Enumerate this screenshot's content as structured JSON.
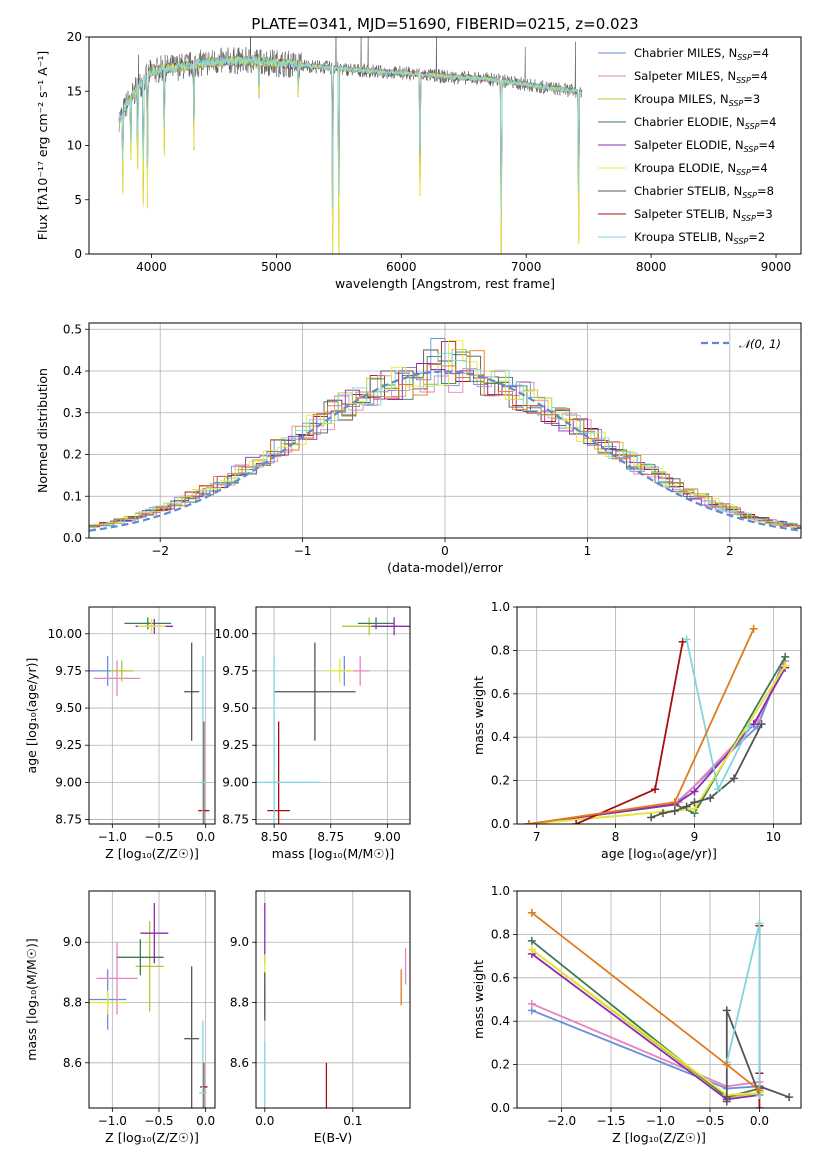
{
  "title": "PLATE=0341, MJD=51690, FIBERID=0215, z=0.023",
  "series_styles": [
    {
      "name": "Chabrier MILES",
      "nssp": "4",
      "color": "#6b8edb"
    },
    {
      "name": "Salpeter MILES",
      "nssp": "4",
      "color": "#e882c0"
    },
    {
      "name": "Kroupa MILES",
      "nssp": "3",
      "color": "#b5c72e"
    },
    {
      "name": "Chabrier ELODIE",
      "nssp": "4",
      "color": "#3f7a54"
    },
    {
      "name": "Salpeter ELODIE",
      "nssp": "4",
      "color": "#8e2ab0"
    },
    {
      "name": "Kroupa ELODIE",
      "nssp": "4",
      "color": "#e8e83a"
    },
    {
      "name": "Chabrier STELIB",
      "nssp": "8",
      "color": "#555555"
    },
    {
      "name": "Salpeter STELIB",
      "nssp": "3",
      "color": "#a8100f"
    },
    {
      "name": "Kroupa STELIB",
      "nssp": "2",
      "color": "#7fd6dc"
    }
  ],
  "chart_data": [
    {
      "id": "spectrum",
      "type": "line",
      "xlabel": "wavelength [Angstrom, rest frame]",
      "ylabel": "Flux [fλ10⁻¹⁷ erg cm⁻² s⁻¹ A⁻¹]",
      "xlim": [
        3500,
        9200
      ],
      "ylim": [
        0,
        20
      ],
      "xticks": [
        "4000",
        "5000",
        "6000",
        "7000",
        "8000",
        "9000"
      ],
      "yticks": [
        "0",
        "5",
        "10",
        "15",
        "20"
      ],
      "legend": "top-right",
      "grid": false,
      "continuum": {
        "x": [
          3750,
          3800,
          3900,
          4000,
          4100,
          4200,
          4400,
          4600,
          4800,
          5000,
          5200,
          5400,
          5600,
          5800,
          6000,
          6200,
          6400,
          6600,
          6800,
          7000,
          7200,
          7400
        ],
        "y": [
          12.5,
          13.8,
          15.5,
          16.8,
          17.1,
          17.2,
          17.6,
          17.8,
          17.8,
          17.6,
          17.4,
          17.2,
          17.0,
          16.8,
          16.7,
          16.5,
          16.3,
          16.2,
          16.0,
          15.6,
          15.3,
          15.0
        ]
      },
      "absorption_lines": [
        {
          "x": 3770,
          "depth": 6.0
        },
        {
          "x": 3835,
          "depth": 5.5
        },
        {
          "x": 3889,
          "depth": 7.0
        },
        {
          "x": 3934,
          "depth": 11.0
        },
        {
          "x": 3968,
          "depth": 10.0
        },
        {
          "x": 4102,
          "depth": 7.5
        },
        {
          "x": 4340,
          "depth": 6.5
        },
        {
          "x": 4861,
          "depth": 3.0
        },
        {
          "x": 5175,
          "depth": 2.5
        },
        {
          "x": 5450,
          "depth": 16.0
        },
        {
          "x": 5500,
          "depth": 17.0
        },
        {
          "x": 6150,
          "depth": 11.0
        },
        {
          "x": 6800,
          "depth": 16.0
        },
        {
          "x": 7420,
          "depth": 13.5
        }
      ]
    },
    {
      "id": "residuals",
      "type": "histogram",
      "xlabel": "(data-model)/error",
      "ylabel": "Normed distribution",
      "xlim": [
        -2.5,
        2.5
      ],
      "ylim": [
        0,
        0.515
      ],
      "xticks": [
        "−2",
        "−1",
        "0",
        "1",
        "2"
      ],
      "yticks": [
        "0.0",
        "0.1",
        "0.2",
        "0.3",
        "0.4",
        "0.5"
      ],
      "legend_label": "𝒩(0, 1)",
      "legend": "top-right",
      "grid": true,
      "bin_width": 0.1,
      "reference_curve": "normal(0,1)"
    },
    {
      "id": "age-vs-Z",
      "type": "errorbar",
      "xlabel": "Z [log₁₀(Z/Z☉)]",
      "ylabel": "age  [log₁₀(age/yr)]",
      "xlim": [
        -1.25,
        0.1
      ],
      "ylim": [
        8.72,
        10.18
      ],
      "xticks": [
        "−1.0",
        "−0.5",
        "0.0"
      ],
      "yticks": [
        "8.75",
        "9.00",
        "9.25",
        "9.50",
        "9.75",
        "10.00"
      ],
      "grid": true,
      "points": [
        {
          "s": 0,
          "x": -1.05,
          "y": 9.75,
          "xe": 0.2,
          "ye": 0.1
        },
        {
          "s": 1,
          "x": -0.95,
          "y": 9.7,
          "xe": 0.25,
          "ye": 0.12
        },
        {
          "s": 2,
          "x": -0.9,
          "y": 9.75,
          "xe": 0.12,
          "ye": 0.07
        },
        {
          "s": 3,
          "x": -0.62,
          "y": 10.07,
          "xe": 0.25,
          "ye": 0.04
        },
        {
          "s": 4,
          "x": -0.55,
          "y": 10.05,
          "xe": 0.2,
          "ye": 0.05
        },
        {
          "s": 5,
          "x": -0.58,
          "y": 10.05,
          "xe": 0.15,
          "ye": 0.05
        },
        {
          "s": 6,
          "x": -0.15,
          "y": 9.61,
          "xe": 0.08,
          "ye": 0.33
        },
        {
          "s": 7,
          "x": -0.02,
          "y": 8.81,
          "xe": 0.06,
          "ye": 0.6
        },
        {
          "s": 8,
          "x": -0.03,
          "y": 9.0,
          "xe": 0.03,
          "ye": 0.85
        }
      ]
    },
    {
      "id": "age-vs-mass",
      "type": "errorbar",
      "xlabel": "mass [log₁₀(M/M☉)]",
      "ylabel": "",
      "xlim": [
        8.42,
        9.1
      ],
      "ylim": [
        8.72,
        10.18
      ],
      "xticks": [
        "8.50",
        "8.75",
        "9.00"
      ],
      "yticks": [
        "8.75",
        "9.00",
        "9.25",
        "9.50",
        "9.75",
        "10.00"
      ],
      "grid": true,
      "points": [
        {
          "s": 0,
          "x": 8.81,
          "y": 9.75,
          "xe": 0.03,
          "ye": 0.1
        },
        {
          "s": 1,
          "x": 8.88,
          "y": 9.75,
          "xe": 0.04,
          "ye": 0.1
        },
        {
          "s": 2,
          "x": 8.92,
          "y": 10.05,
          "xe": 0.12,
          "ye": 0.06
        },
        {
          "s": 3,
          "x": 8.95,
          "y": 10.07,
          "xe": 0.08,
          "ye": 0.04
        },
        {
          "s": 4,
          "x": 9.03,
          "y": 10.05,
          "xe": 0.1,
          "ye": 0.06
        },
        {
          "s": 5,
          "x": 8.79,
          "y": 9.75,
          "xe": 0.06,
          "ye": 0.08
        },
        {
          "s": 6,
          "x": 8.68,
          "y": 9.61,
          "xe": 0.18,
          "ye": 0.33
        },
        {
          "s": 7,
          "x": 8.52,
          "y": 8.81,
          "xe": 0.05,
          "ye": 0.6
        },
        {
          "s": 8,
          "x": 8.5,
          "y": 9.0,
          "xe": 0.2,
          "ye": 0.85
        }
      ]
    },
    {
      "id": "mass-weight-vs-age",
      "type": "line",
      "xlabel": "age  [log₁₀(age/yr)]",
      "ylabel": "mass weight",
      "xlim": [
        6.75,
        10.35
      ],
      "ylim": [
        0,
        1
      ],
      "xticks": [
        "7",
        "8",
        "9",
        "10"
      ],
      "yticks": [
        "0.0",
        "0.2",
        "0.4",
        "0.6",
        "0.8",
        "1.0"
      ],
      "grid": true,
      "series": [
        {
          "s": 0,
          "x": [
            6.9,
            8.75,
            9.8,
            10.15
          ],
          "y": [
            0.0,
            0.09,
            0.45,
            0.77
          ]
        },
        {
          "s": 1,
          "x": [
            6.9,
            8.8,
            9.8,
            10.15
          ],
          "y": [
            0.0,
            0.1,
            0.48,
            0.75
          ]
        },
        {
          "s": 2,
          "x": [
            6.9,
            9.0,
            10.15
          ],
          "y": [
            0.0,
            0.07,
            0.73
          ]
        },
        {
          "s": 3,
          "x": [
            6.9,
            8.75,
            9.0,
            10.15
          ],
          "y": [
            0.0,
            0.09,
            0.05,
            0.77
          ]
        },
        {
          "s": 4,
          "x": [
            6.9,
            8.75,
            9.0,
            9.75,
            10.15
          ],
          "y": [
            0.0,
            0.09,
            0.15,
            0.46,
            0.72
          ]
        },
        {
          "s": 5,
          "x": [
            6.9,
            9.0,
            10.15
          ],
          "y": [
            0.0,
            0.07,
            0.73
          ]
        },
        {
          "s": 6,
          "x": [
            8.45,
            8.6,
            8.75,
            8.9,
            9.0,
            9.2,
            9.5,
            9.85
          ],
          "y": [
            0.03,
            0.05,
            0.06,
            0.08,
            0.1,
            0.12,
            0.21,
            0.46
          ]
        },
        {
          "s": 7,
          "x": [
            7.5,
            8.5,
            8.85
          ],
          "y": [
            0.0,
            0.16,
            0.84
          ]
        },
        {
          "s": 8,
          "x": [
            8.9,
            9.3,
            9.7
          ],
          "y": [
            0.85,
            0.16,
            0.45
          ]
        },
        {
          "s": 9,
          "x": [
            6.9,
            8.75,
            9.75
          ],
          "y": [
            0.0,
            0.1,
            0.9
          ],
          "color": "#e07b1f"
        }
      ]
    },
    {
      "id": "mass-vs-Z",
      "type": "errorbar",
      "xlabel": "Z [log₁₀(Z/Z☉)]",
      "ylabel": "mass [log₁₀(M/M☉)]",
      "xlim": [
        -1.25,
        0.1
      ],
      "ylim": [
        8.45,
        9.17
      ],
      "xticks": [
        "−1.0",
        "−0.5",
        "0.0"
      ],
      "yticks": [
        "8.6",
        "8.8",
        "9.0"
      ],
      "grid": true,
      "points": [
        {
          "s": 0,
          "x": -1.05,
          "y": 8.81,
          "xe": 0.2,
          "ye": 0.1
        },
        {
          "s": 1,
          "x": -0.95,
          "y": 8.88,
          "xe": 0.22,
          "ye": 0.12
        },
        {
          "s": 2,
          "x": -0.6,
          "y": 8.92,
          "xe": 0.15,
          "ye": 0.15
        },
        {
          "s": 3,
          "x": -0.7,
          "y": 8.95,
          "xe": 0.25,
          "ye": 0.06
        },
        {
          "s": 4,
          "x": -0.55,
          "y": 9.03,
          "xe": 0.15,
          "ye": 0.1
        },
        {
          "s": 5,
          "x": -1.05,
          "y": 8.8,
          "xe": 0.2,
          "ye": 0.04
        },
        {
          "s": 6,
          "x": -0.15,
          "y": 8.68,
          "xe": 0.08,
          "ye": 0.24
        },
        {
          "s": 7,
          "x": -0.02,
          "y": 8.52,
          "xe": 0.04,
          "ye": 0.08
        },
        {
          "s": 8,
          "x": -0.03,
          "y": 8.5,
          "xe": 0.04,
          "ye": 0.24
        }
      ]
    },
    {
      "id": "mass-vs-ebv",
      "type": "errorbar",
      "xlabel": "E(B-V)",
      "ylabel": "",
      "xlim": [
        -0.01,
        0.165
      ],
      "ylim": [
        8.45,
        9.17
      ],
      "xticks": [
        "0.0",
        "0.1"
      ],
      "yticks": [
        "8.6",
        "8.8",
        "9.0"
      ],
      "grid": true,
      "points": [
        {
          "s": 0,
          "x": 0.0,
          "y": 8.81,
          "xe": 0.0,
          "ye": 0.05
        },
        {
          "s": 4,
          "x": 0.0,
          "y": 9.03,
          "xe": 0.0,
          "ye": 0.1
        },
        {
          "s": 5,
          "x": 0.0,
          "y": 8.92,
          "xe": 0.0,
          "ye": 0.04
        },
        {
          "s": 6,
          "x": 0.0,
          "y": 8.82,
          "xe": 0.0,
          "ye": 0.08
        },
        {
          "s": 7,
          "x": 0.07,
          "y": 8.52,
          "xe": 0.0,
          "ye": 0.08
        },
        {
          "s": 8,
          "x": 0.0,
          "y": 8.55,
          "xe": 0.0,
          "ye": 0.12
        },
        {
          "s": 9,
          "x": 0.155,
          "y": 8.85,
          "xe": 0.0,
          "ye": 0.06,
          "color": "#e07b1f"
        },
        {
          "s": 1,
          "x": 0.16,
          "y": 8.92,
          "xe": 0.0,
          "ye": 0.06
        }
      ]
    },
    {
      "id": "mass-weight-vs-Z",
      "type": "line",
      "xlabel": "Z [log₁₀(Z/Z☉)]",
      "ylabel": "mass weight",
      "xlim": [
        -2.45,
        0.42
      ],
      "ylim": [
        0,
        1
      ],
      "xticks": [
        "−2.0",
        "−1.5",
        "−1.0",
        "−0.5",
        "0.0"
      ],
      "yticks": [
        "0.0",
        "0.2",
        "0.4",
        "0.6",
        "0.8",
        "1.0"
      ],
      "grid": true,
      "series": [
        {
          "s": 0,
          "x": [
            -2.3,
            -0.33,
            0.0
          ],
          "y": [
            0.45,
            0.09,
            0.1
          ]
        },
        {
          "s": 1,
          "x": [
            -2.3,
            -0.33,
            0.0
          ],
          "y": [
            0.48,
            0.1,
            0.12
          ]
        },
        {
          "s": 2,
          "x": [
            -2.3,
            -0.33,
            0.0
          ],
          "y": [
            0.73,
            0.05,
            0.07
          ]
        },
        {
          "s": 3,
          "x": [
            -2.3,
            -0.33,
            0.0
          ],
          "y": [
            0.77,
            0.05,
            0.09
          ]
        },
        {
          "s": 4,
          "x": [
            -2.3,
            -0.33,
            0.0
          ],
          "y": [
            0.71,
            0.04,
            0.06
          ]
        },
        {
          "s": 5,
          "x": [
            -2.3,
            -0.33,
            0.0
          ],
          "y": [
            0.73,
            0.06,
            0.07
          ]
        },
        {
          "s": 6,
          "x": [
            -0.33,
            -0.33,
            0.0,
            0.0,
            0.3
          ],
          "y": [
            0.03,
            0.45,
            0.06,
            0.1,
            0.05
          ]
        },
        {
          "s": 7,
          "x": [
            0.0,
            0.0,
            0.0
          ],
          "y": [
            0.0,
            0.84,
            0.16
          ]
        },
        {
          "s": 8,
          "x": [
            -0.33,
            0.0,
            0.0
          ],
          "y": [
            0.21,
            0.85,
            0.06
          ]
        },
        {
          "s": 9,
          "x": [
            -2.3,
            -0.33,
            0.0
          ],
          "y": [
            0.9,
            0.2,
            0.08
          ],
          "color": "#e07b1f"
        }
      ]
    }
  ]
}
